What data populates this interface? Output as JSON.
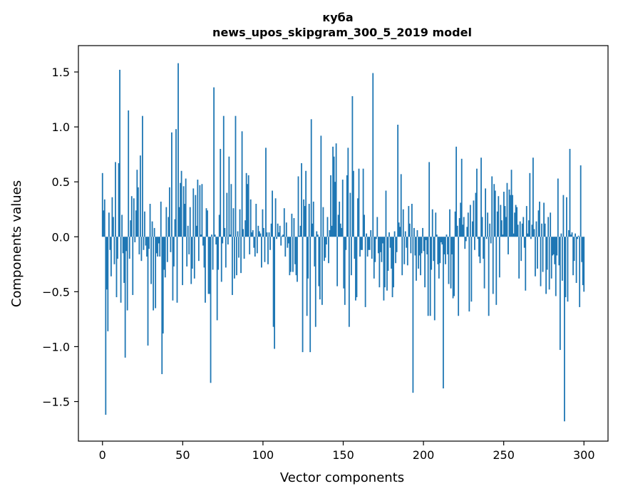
{
  "chart_data": {
    "type": "bar",
    "title": "куба",
    "subtitle": "news_upos_skipgram_300_5_2019 model",
    "xlabel": "Vector components",
    "ylabel": "Components values",
    "xlim": [
      -15,
      315
    ],
    "ylim": [
      -1.86,
      1.74
    ],
    "xticks": [
      0,
      50,
      100,
      150,
      200,
      250,
      300
    ],
    "yticks": [
      -1.5,
      -1.0,
      -0.5,
      0.0,
      0.5,
      1.0,
      1.5
    ],
    "ytick_labels": [
      "−1.5",
      "−1.0",
      "−0.5",
      "0.0",
      "0.5",
      "1.0",
      "1.5"
    ],
    "grid": false,
    "bar_color": "#1f77b4",
    "values": [
      0.58,
      0.24,
      0.34,
      -1.62,
      -0.48,
      -0.86,
      0.22,
      -0.12,
      -0.36,
      0.36,
      0.18,
      -0.25,
      0.68,
      -0.55,
      -0.2,
      0.67,
      1.52,
      -0.6,
      0.2,
      -0.15,
      -0.42,
      -1.1,
      -0.13,
      -0.67,
      1.15,
      -0.2,
      0.15,
      0.37,
      -0.53,
      0.35,
      -0.05,
      0.24,
      0.61,
      0.45,
      -0.16,
      0.74,
      -0.22,
      1.1,
      -0.12,
      0.23,
      -0.08,
      -0.18,
      -0.99,
      -0.11,
      0.3,
      -0.43,
      0.14,
      -0.67,
      0.08,
      -0.65,
      -0.15,
      -0.18,
      -0.06,
      -0.18,
      0.32,
      -1.25,
      -0.88,
      -0.3,
      -0.37,
      0.27,
      -0.23,
      0.18,
      0.45,
      -0.14,
      0.95,
      -0.58,
      -0.27,
      0.16,
      0.98,
      -0.6,
      1.58,
      0.27,
      0.49,
      0.6,
      -0.44,
      0.46,
      0.3,
      0.53,
      -0.27,
      0.1,
      -0.16,
      0.27,
      -0.43,
      -0.29,
      0.44,
      -0.38,
      0.38,
      0.1,
      0.52,
      -0.22,
      0.47,
      0.02,
      0.48,
      -0.08,
      -0.28,
      -0.6,
      0.26,
      0.24,
      -0.52,
      -0.52,
      -1.33,
      0.02,
      -0.3,
      1.36,
      0.02,
      -0.07,
      -0.76,
      -0.3,
      0.2,
      0.8,
      -0.41,
      -0.06,
      1.1,
      0.08,
      -0.28,
      0.4,
      -0.07,
      0.73,
      0.02,
      0.48,
      -0.53,
      0.26,
      -0.38,
      1.1,
      -0.35,
      0.05,
      -0.19,
      0.25,
      -0.33,
      0.96,
      0.07,
      -0.2,
      0.15,
      0.58,
      0.48,
      0.56,
      -0.16,
      0.34,
      0.04,
      0.06,
      -0.1,
      -0.18,
      0.3,
      -0.15,
      0.1,
      0.05,
      0.03,
      -0.28,
      0.25,
      0.08,
      -0.23,
      0.81,
      0.04,
      -0.25,
      0.04,
      -0.12,
      0.12,
      0.42,
      -0.82,
      -1.02,
      0.35,
      -0.02,
      0.12,
      0.04,
      0.1,
      -0.08,
      0.01,
      0.02,
      0.26,
      -0.18,
      0.13,
      -0.1,
      -0.06,
      -0.35,
      -0.32,
      0.21,
      -0.32,
      0.17,
      -0.25,
      -0.35,
      -0.41,
      0.55,
      0.01,
      0.1,
      0.67,
      -1.05,
      0.34,
      0.28,
      0.6,
      -0.72,
      -0.38,
      0.3,
      -1.05,
      1.07,
      0.12,
      0.32,
      -0.27,
      -0.82,
      0.05,
      0.02,
      -0.45,
      -0.57,
      0.92,
      -0.62,
      0.27,
      -0.22,
      -0.19,
      -0.07,
      0.18,
      -0.24,
      0.06,
      0.56,
      0.1,
      0.82,
      0.73,
      0.5,
      0.85,
      -0.45,
      0.2,
      0.32,
      0.12,
      0.08,
      0.52,
      -0.47,
      -0.62,
      -0.12,
      0.56,
      0.81,
      -0.82,
      0.4,
      -0.35,
      1.28,
      0.6,
      -0.2,
      -0.58,
      -0.55,
      0.35,
      0.62,
      -0.18,
      -0.12,
      -0.12,
      0.62,
      0.2,
      -0.64,
      0.03,
      -0.18,
      -0.12,
      -0.12,
      0.06,
      -0.2,
      1.49,
      -0.38,
      -0.23,
      -0.02,
      0.18,
      -0.15,
      -0.46,
      -0.14,
      -0.23,
      -0.06,
      -0.58,
      -0.46,
      0.42,
      -0.49,
      -0.31,
      0.04,
      -0.1,
      -0.29,
      -0.55,
      -0.46,
      0.05,
      -0.24,
      -0.14,
      1.02,
      0.13,
      0.09,
      0.57,
      -0.35,
      0.25,
      -0.25,
      0.05,
      -0.1,
      -0.26,
      0.28,
      0.12,
      -0.15,
      0.3,
      -1.42,
      0.08,
      -0.17,
      -0.4,
      0.06,
      -0.29,
      -0.17,
      -0.35,
      -0.15,
      0.08,
      -0.13,
      -0.46,
      -0.03,
      -0.16,
      -0.72,
      0.68,
      -0.72,
      -0.3,
      0.25,
      -0.22,
      -0.76,
      0.22,
      0.02,
      -0.25,
      -0.38,
      -0.24,
      -0.05,
      -0.07,
      -1.38,
      -0.16,
      -0.25,
      0.02,
      -0.16,
      -0.43,
      0.25,
      -0.47,
      -0.16,
      -0.56,
      -0.54,
      0.23,
      0.82,
      0.1,
      -0.72,
      0.17,
      0.31,
      0.71,
      0.11,
      0.18,
      -0.11,
      -0.04,
      0.09,
      0.22,
      -0.68,
      0.29,
      -0.59,
      0.14,
      0.33,
      -0.12,
      0.4,
      0.62,
      -0.02,
      -0.18,
      -0.24,
      0.72,
      0.18,
      -0.2,
      -0.47,
      0.44,
      -0.02,
      0.22,
      -0.72,
      0.12,
      -0.06,
      0.55,
      -0.52,
      0.48,
      0.42,
      -0.62,
      0.23,
      0.37,
      -0.37,
      0.29,
      0.15,
      0.02,
      0.41,
      0.28,
      0.18,
      0.49,
      -0.16,
      0.43,
      0.38,
      0.61,
      0.38,
      0.03,
      0.22,
      0.29,
      0.27,
      0.11,
      -0.38,
      0.14,
      -0.22,
      0.12,
      0.18,
      -0.1,
      -0.49,
      0.28,
      0.03,
      0.15,
      0.58,
      -0.02,
      0.11,
      0.72,
      0.07,
      -0.36,
      0.14,
      -0.29,
      0.24,
      0.32,
      -0.45,
      0.12,
      -0.32,
      0.31,
      0.12,
      -0.52,
      -0.3,
      0.18,
      -0.48,
      0.22,
      -0.38,
      -0.17,
      -0.16,
      -0.25,
      -0.54,
      -0.17,
      0.53,
      -0.26,
      -1.03,
      0.03,
      -0.4,
      0.38,
      -1.68,
      -0.55,
      0.36,
      -0.59,
      0.06,
      0.8,
      0.02,
      0.04,
      -0.35,
      -0.22,
      0.03,
      -0.42,
      -0.02,
      0.01,
      -0.64,
      0.65,
      -0.23,
      -0.44,
      -0.5
    ]
  }
}
